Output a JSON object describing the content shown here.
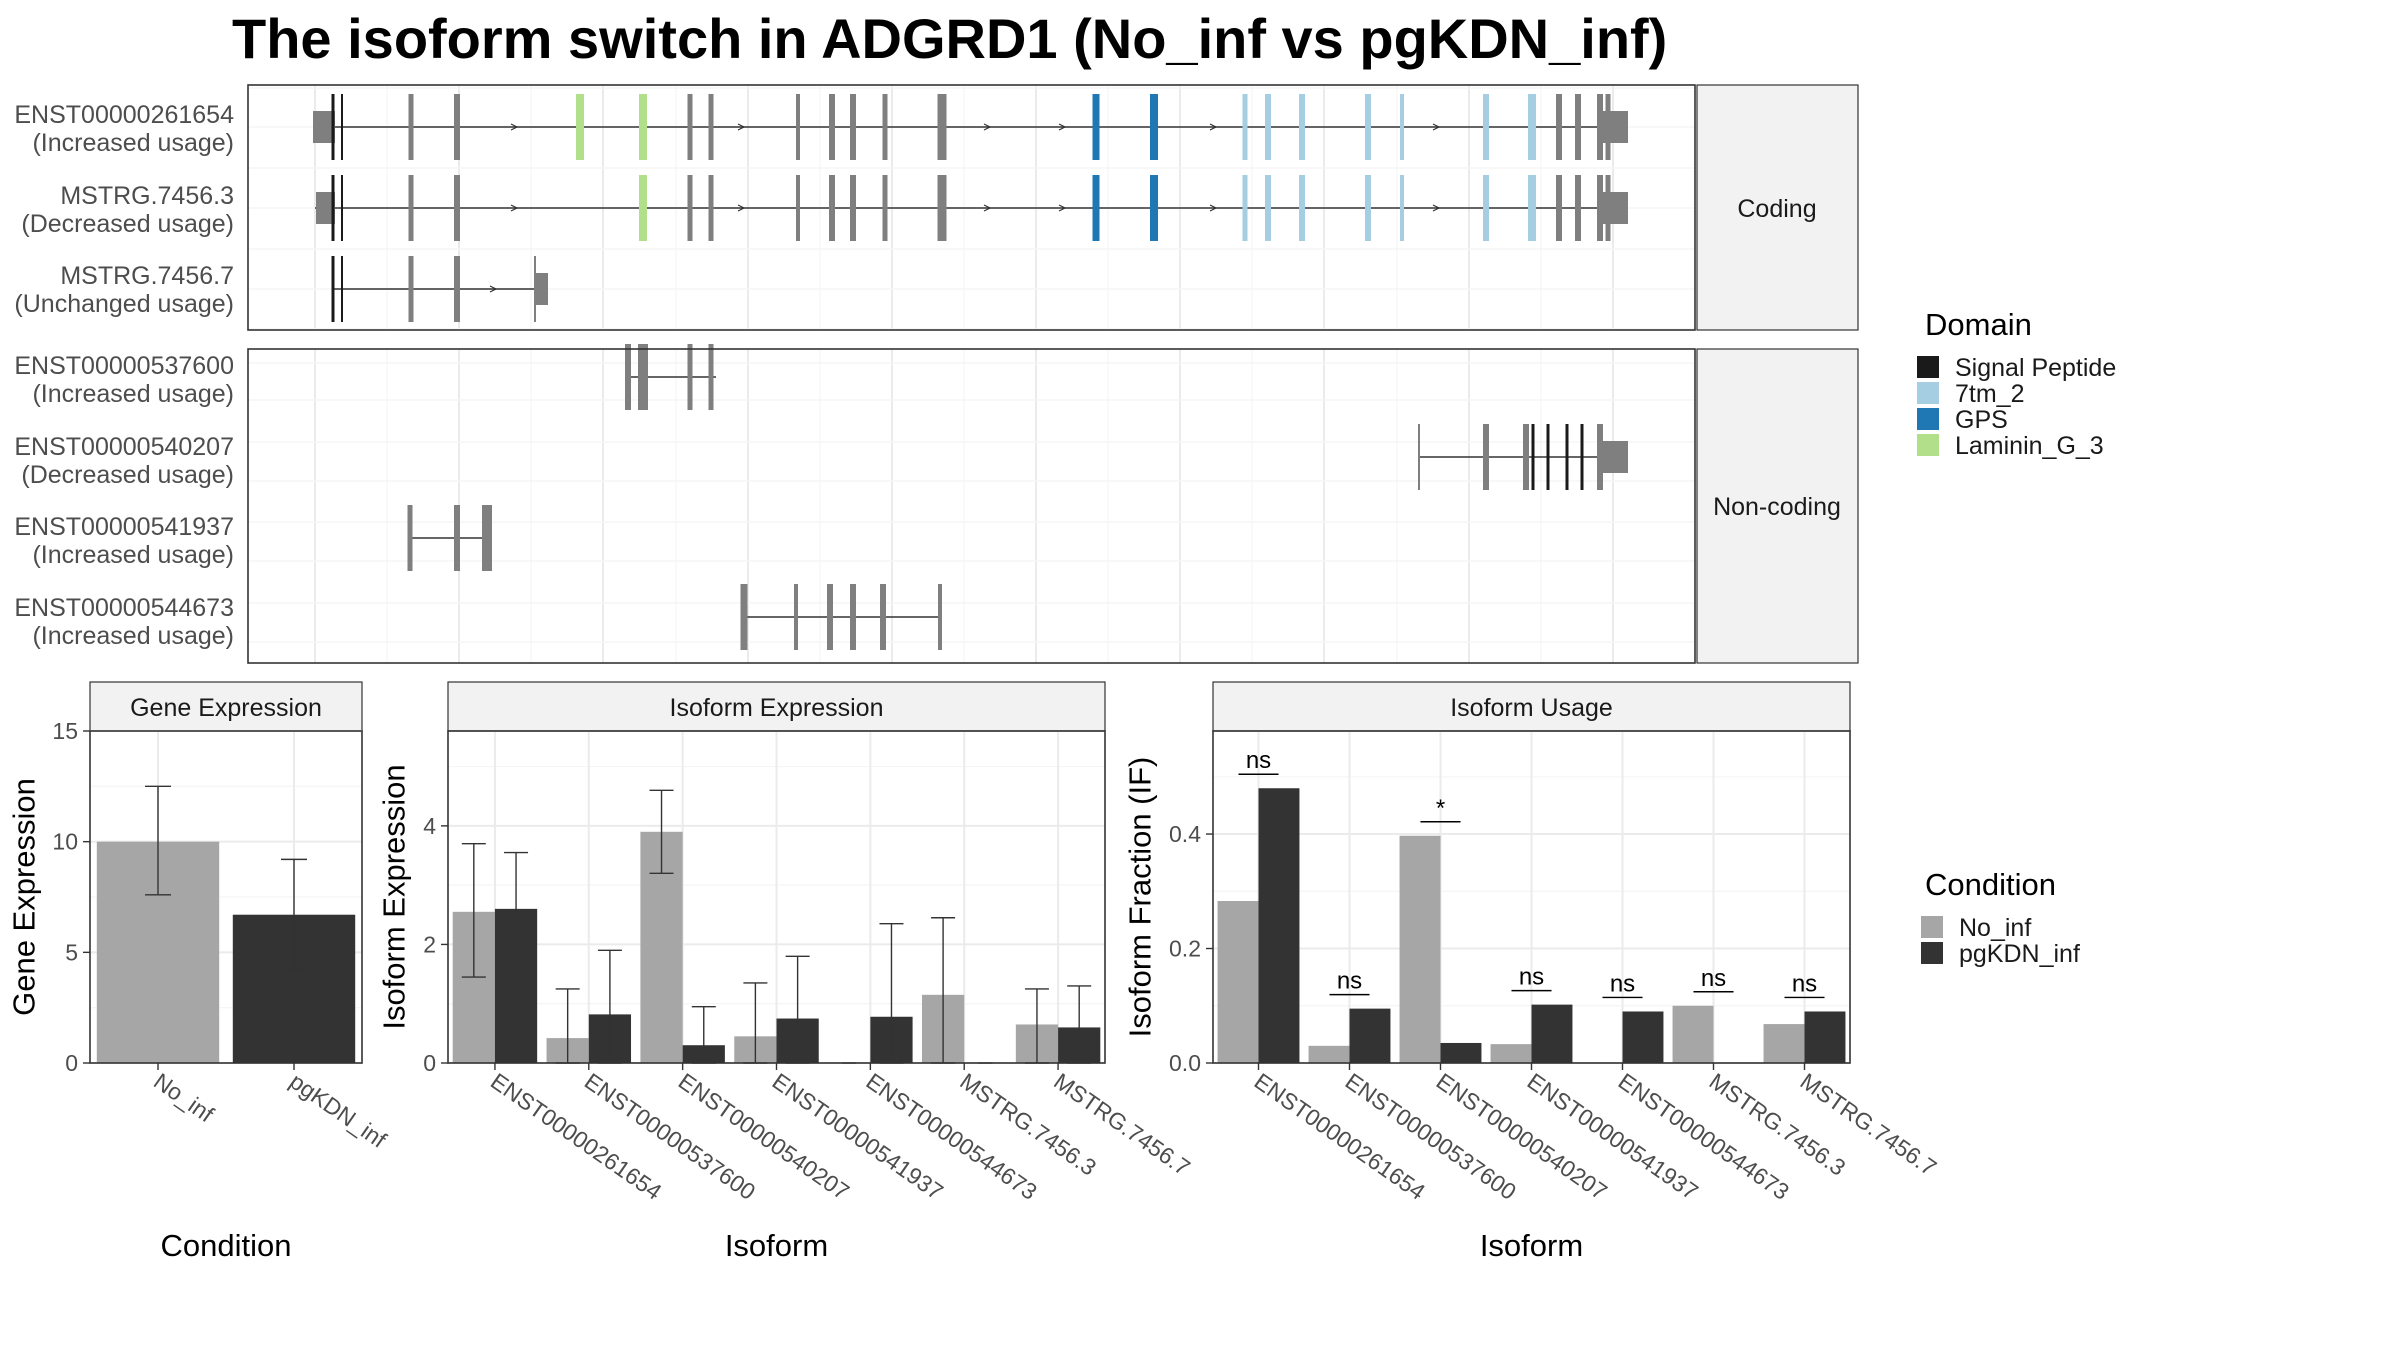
{
  "title": "The isoform switch in ADGRD1 (No_inf vs pgKDN_inf)",
  "structure": {
    "groups": [
      {
        "label": "Coding",
        "isoforms": [
          {
            "id": "ENST00000261654",
            "usage": "(Increased usage)"
          },
          {
            "id": "MSTRG.7456.3",
            "usage": "(Decreased usage)"
          },
          {
            "id": "MSTRG.7456.7",
            "usage": "(Unchanged usage)"
          }
        ]
      },
      {
        "label": "Non-coding",
        "isoforms": [
          {
            "id": "ENST00000537600",
            "usage": "(Increased usage)"
          },
          {
            "id": "ENST00000540207",
            "usage": "(Decreased usage)"
          },
          {
            "id": "ENST00000541937",
            "usage": "(Increased usage)"
          },
          {
            "id": "ENST00000544673",
            "usage": "(Increased usage)"
          }
        ]
      }
    ]
  },
  "domain_legend": {
    "title": "Domain",
    "items": [
      {
        "label": "Signal Peptide",
        "color": "#1a1a1a"
      },
      {
        "label": "7tm_2",
        "color": "#a6cee3"
      },
      {
        "label": "GPS",
        "color": "#1f78b4"
      },
      {
        "label": "Laminin_G_3",
        "color": "#b2df8a"
      }
    ]
  },
  "condition_legend": {
    "title": "Condition",
    "items": [
      {
        "label": "No_inf",
        "color": "#a6a6a6"
      },
      {
        "label": "pgKDN_inf",
        "color": "#333333"
      }
    ]
  },
  "chart_data": [
    {
      "type": "bar",
      "panel": "Gene Expression",
      "xlabel": "Condition",
      "ylabel": "Gene Expression",
      "categories": [
        "No_inf",
        "pgKDN_inf"
      ],
      "values": [
        10.0,
        6.7
      ],
      "error_low": [
        7.6,
        4.2
      ],
      "error_high": [
        12.5,
        9.2
      ],
      "ylim": [
        0,
        15
      ],
      "yticks": [
        0,
        5,
        10,
        15
      ],
      "grid": true
    },
    {
      "type": "bar",
      "panel": "Isoform Expression",
      "xlabel": "Isoform",
      "ylabel": "Isoform Expression",
      "categories": [
        "ENST00000261654",
        "ENST00000537600",
        "ENST00000540207",
        "ENST00000541937",
        "ENST00000544673",
        "MSTRG.7456.3",
        "MSTRG.7456.7"
      ],
      "series": [
        {
          "name": "No_inf",
          "values": [
            2.55,
            0.42,
            3.9,
            0.45,
            0.0,
            1.15,
            0.65
          ],
          "error_low": [
            1.45,
            0.0,
            3.2,
            0.0,
            0.0,
            0.0,
            0.0
          ],
          "error_high": [
            3.7,
            1.25,
            4.6,
            1.35,
            0.0,
            2.45,
            1.25
          ]
        },
        {
          "name": "pgKDN_inf",
          "values": [
            2.6,
            0.82,
            0.3,
            0.75,
            0.78,
            0.0,
            0.6
          ],
          "error_low": [
            1.65,
            0.0,
            0.0,
            0.0,
            0.0,
            0.0,
            0.0
          ],
          "error_high": [
            3.55,
            1.9,
            0.95,
            1.8,
            2.35,
            0.0,
            1.3
          ]
        }
      ],
      "ylim": [
        0,
        5.6
      ],
      "yticks": [
        0,
        2,
        4
      ],
      "grid": true
    },
    {
      "type": "bar",
      "panel": "Isoform Usage",
      "xlabel": "Isoform",
      "ylabel": "Isoform Fraction (IF)",
      "categories": [
        "ENST00000261654",
        "ENST00000537600",
        "ENST00000540207",
        "ENST00000541937",
        "ENST00000544673",
        "MSTRG.7456.3",
        "MSTRG.7456.7"
      ],
      "series": [
        {
          "name": "No_inf",
          "values": [
            0.283,
            0.03,
            0.397,
            0.033,
            0.0,
            0.1,
            0.068
          ]
        },
        {
          "name": "pgKDN_inf",
          "values": [
            0.48,
            0.095,
            0.035,
            0.102,
            0.09,
            0.0,
            0.09
          ]
        }
      ],
      "significance": [
        "ns",
        "ns",
        "*",
        "ns",
        "ns",
        "ns",
        "ns"
      ],
      "ylim": [
        0,
        0.58
      ],
      "yticks": [
        0.0,
        0.2,
        0.4
      ],
      "grid": true
    }
  ]
}
